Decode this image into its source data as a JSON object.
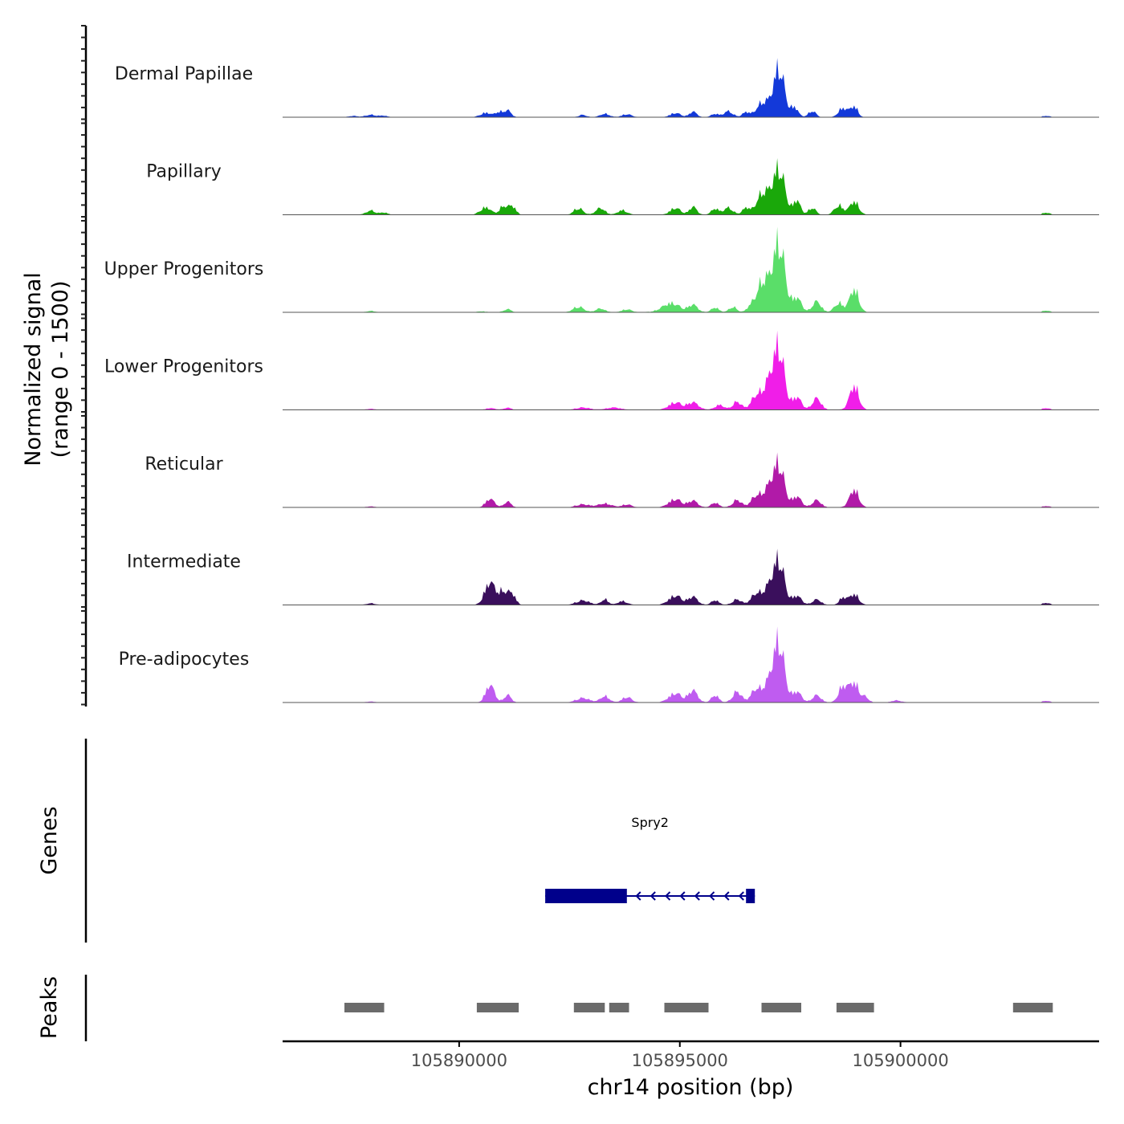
{
  "chart_data": {
    "type": "area",
    "title": "",
    "ylabel_line1": "Normalized signal",
    "ylabel_line2": "(range 0 - 1500)",
    "ylim": [
      0,
      1500
    ],
    "xlabel": "chr14 position (bp)",
    "xlim": [
      105886000,
      105904500
    ],
    "xticks": [
      105890000,
      105895000,
      105900000
    ],
    "xtick_labels": [
      "105890000",
      "105895000",
      "105900000"
    ],
    "peak_shape": [
      [
        105887400,
        105888300,
        1.0
      ],
      [
        105890600,
        105891200,
        1.0
      ],
      [
        105892600,
        105894300,
        0.8
      ],
      [
        105894800,
        105896600,
        0.85
      ],
      [
        105896700,
        105897500,
        1.0
      ],
      [
        105897500,
        105897900,
        0.9
      ],
      [
        105898500,
        105899000,
        1.0
      ],
      [
        105900000,
        105900300,
        1.0
      ],
      [
        105903200,
        105903400,
        1.0
      ]
    ],
    "series": [
      {
        "name": "Dermal Papillae",
        "color": "#1339d9",
        "peaks": [
          {
            "x": 105887600,
            "w": 80,
            "y": 30
          },
          {
            "x": 105888000,
            "w": 120,
            "y": 60
          },
          {
            "x": 105888300,
            "w": 80,
            "y": 40
          },
          {
            "x": 105890600,
            "w": 120,
            "y": 120
          },
          {
            "x": 105890900,
            "w": 80,
            "y": 140
          },
          {
            "x": 105891100,
            "w": 80,
            "y": 180
          },
          {
            "x": 105892800,
            "w": 80,
            "y": 60
          },
          {
            "x": 105893300,
            "w": 100,
            "y": 90
          },
          {
            "x": 105893800,
            "w": 100,
            "y": 80
          },
          {
            "x": 105894900,
            "w": 120,
            "y": 110
          },
          {
            "x": 105895300,
            "w": 80,
            "y": 150
          },
          {
            "x": 105895800,
            "w": 80,
            "y": 90
          },
          {
            "x": 105896100,
            "w": 100,
            "y": 160
          },
          {
            "x": 105896500,
            "w": 80,
            "y": 130
          },
          {
            "x": 105896900,
            "w": 150,
            "y": 420
          },
          {
            "x": 105897250,
            "w": 120,
            "y": 1350
          },
          {
            "x": 105897600,
            "w": 80,
            "y": 270
          },
          {
            "x": 105898000,
            "w": 80,
            "y": 180
          },
          {
            "x": 105898700,
            "w": 100,
            "y": 250
          },
          {
            "x": 105898950,
            "w": 80,
            "y": 300
          },
          {
            "x": 105903300,
            "w": 80,
            "y": 30
          }
        ]
      },
      {
        "name": "Papillary",
        "color": "#1aa80a",
        "peaks": [
          {
            "x": 105888000,
            "w": 100,
            "y": 110
          },
          {
            "x": 105888300,
            "w": 80,
            "y": 60
          },
          {
            "x": 105890600,
            "w": 120,
            "y": 200
          },
          {
            "x": 105891000,
            "w": 80,
            "y": 230
          },
          {
            "x": 105891200,
            "w": 80,
            "y": 250
          },
          {
            "x": 105892700,
            "w": 100,
            "y": 180
          },
          {
            "x": 105893200,
            "w": 100,
            "y": 180
          },
          {
            "x": 105893700,
            "w": 100,
            "y": 120
          },
          {
            "x": 105894900,
            "w": 120,
            "y": 180
          },
          {
            "x": 105895300,
            "w": 80,
            "y": 220
          },
          {
            "x": 105895800,
            "w": 80,
            "y": 170
          },
          {
            "x": 105896100,
            "w": 100,
            "y": 190
          },
          {
            "x": 105896500,
            "w": 80,
            "y": 180
          },
          {
            "x": 105896900,
            "w": 150,
            "y": 620
          },
          {
            "x": 105897250,
            "w": 130,
            "y": 1250
          },
          {
            "x": 105897650,
            "w": 80,
            "y": 400
          },
          {
            "x": 105898000,
            "w": 80,
            "y": 200
          },
          {
            "x": 105898600,
            "w": 100,
            "y": 250
          },
          {
            "x": 105898950,
            "w": 100,
            "y": 370
          },
          {
            "x": 105903300,
            "w": 80,
            "y": 50
          }
        ]
      },
      {
        "name": "Upper Progenitors",
        "color": "#5ade69",
        "peaks": [
          {
            "x": 105888000,
            "w": 80,
            "y": 30
          },
          {
            "x": 105890500,
            "w": 80,
            "y": 30
          },
          {
            "x": 105891100,
            "w": 80,
            "y": 80
          },
          {
            "x": 105892700,
            "w": 120,
            "y": 150
          },
          {
            "x": 105893200,
            "w": 100,
            "y": 100
          },
          {
            "x": 105893800,
            "w": 100,
            "y": 80
          },
          {
            "x": 105894800,
            "w": 200,
            "y": 250
          },
          {
            "x": 105895300,
            "w": 100,
            "y": 200
          },
          {
            "x": 105895800,
            "w": 80,
            "y": 130
          },
          {
            "x": 105896200,
            "w": 80,
            "y": 150
          },
          {
            "x": 105896600,
            "w": 80,
            "y": 120
          },
          {
            "x": 105896900,
            "w": 150,
            "y": 880
          },
          {
            "x": 105897250,
            "w": 130,
            "y": 1900
          },
          {
            "x": 105897650,
            "w": 100,
            "y": 400
          },
          {
            "x": 105898100,
            "w": 100,
            "y": 300
          },
          {
            "x": 105898600,
            "w": 100,
            "y": 250
          },
          {
            "x": 105898950,
            "w": 100,
            "y": 650
          },
          {
            "x": 105903300,
            "w": 80,
            "y": 40
          }
        ]
      },
      {
        "name": "Lower Progenitors",
        "color": "#f01ee8",
        "peaks": [
          {
            "x": 105888000,
            "w": 80,
            "y": 20
          },
          {
            "x": 105890700,
            "w": 100,
            "y": 40
          },
          {
            "x": 105891100,
            "w": 80,
            "y": 50
          },
          {
            "x": 105892800,
            "w": 150,
            "y": 60
          },
          {
            "x": 105893500,
            "w": 150,
            "y": 60
          },
          {
            "x": 105894900,
            "w": 150,
            "y": 200
          },
          {
            "x": 105895300,
            "w": 120,
            "y": 200
          },
          {
            "x": 105895900,
            "w": 100,
            "y": 130
          },
          {
            "x": 105896300,
            "w": 100,
            "y": 220
          },
          {
            "x": 105896700,
            "w": 100,
            "y": 300
          },
          {
            "x": 105897000,
            "w": 150,
            "y": 700
          },
          {
            "x": 105897250,
            "w": 120,
            "y": 1600
          },
          {
            "x": 105897650,
            "w": 100,
            "y": 350
          },
          {
            "x": 105898100,
            "w": 100,
            "y": 320
          },
          {
            "x": 105898950,
            "w": 100,
            "y": 680
          },
          {
            "x": 105903300,
            "w": 80,
            "y": 40
          }
        ]
      },
      {
        "name": "Reticular",
        "color": "#b11aa8",
        "peaks": [
          {
            "x": 105888000,
            "w": 80,
            "y": 20
          },
          {
            "x": 105890700,
            "w": 100,
            "y": 230
          },
          {
            "x": 105891100,
            "w": 80,
            "y": 150
          },
          {
            "x": 105892800,
            "w": 150,
            "y": 80
          },
          {
            "x": 105893300,
            "w": 150,
            "y": 100
          },
          {
            "x": 105893800,
            "w": 100,
            "y": 80
          },
          {
            "x": 105894900,
            "w": 150,
            "y": 220
          },
          {
            "x": 105895300,
            "w": 100,
            "y": 180
          },
          {
            "x": 105895800,
            "w": 80,
            "y": 130
          },
          {
            "x": 105896300,
            "w": 100,
            "y": 200
          },
          {
            "x": 105896700,
            "w": 100,
            "y": 250
          },
          {
            "x": 105897000,
            "w": 150,
            "y": 500
          },
          {
            "x": 105897250,
            "w": 120,
            "y": 1100
          },
          {
            "x": 105897650,
            "w": 100,
            "y": 300
          },
          {
            "x": 105898100,
            "w": 100,
            "y": 200
          },
          {
            "x": 105898950,
            "w": 100,
            "y": 500
          },
          {
            "x": 105903300,
            "w": 80,
            "y": 30
          }
        ]
      },
      {
        "name": "Intermediate",
        "color": "#3a0f5c",
        "peaks": [
          {
            "x": 105888000,
            "w": 80,
            "y": 40
          },
          {
            "x": 105890700,
            "w": 120,
            "y": 620
          },
          {
            "x": 105891000,
            "w": 100,
            "y": 350
          },
          {
            "x": 105891200,
            "w": 80,
            "y": 300
          },
          {
            "x": 105892800,
            "w": 150,
            "y": 120
          },
          {
            "x": 105893300,
            "w": 80,
            "y": 150
          },
          {
            "x": 105893700,
            "w": 100,
            "y": 100
          },
          {
            "x": 105894900,
            "w": 150,
            "y": 250
          },
          {
            "x": 105895300,
            "w": 100,
            "y": 220
          },
          {
            "x": 105895800,
            "w": 80,
            "y": 130
          },
          {
            "x": 105896300,
            "w": 100,
            "y": 150
          },
          {
            "x": 105896700,
            "w": 100,
            "y": 250
          },
          {
            "x": 105897000,
            "w": 150,
            "y": 450
          },
          {
            "x": 105897250,
            "w": 120,
            "y": 1150
          },
          {
            "x": 105897650,
            "w": 100,
            "y": 250
          },
          {
            "x": 105898100,
            "w": 100,
            "y": 150
          },
          {
            "x": 105898700,
            "w": 80,
            "y": 200
          },
          {
            "x": 105898950,
            "w": 100,
            "y": 300
          },
          {
            "x": 105903300,
            "w": 80,
            "y": 50
          }
        ]
      },
      {
        "name": "Pre-adipocytes",
        "color": "#bf5cf0",
        "peaks": [
          {
            "x": 105888000,
            "w": 80,
            "y": 20
          },
          {
            "x": 105890700,
            "w": 100,
            "y": 480
          },
          {
            "x": 105891100,
            "w": 80,
            "y": 200
          },
          {
            "x": 105892800,
            "w": 150,
            "y": 120
          },
          {
            "x": 105893300,
            "w": 100,
            "y": 170
          },
          {
            "x": 105893800,
            "w": 100,
            "y": 150
          },
          {
            "x": 105894900,
            "w": 150,
            "y": 250
          },
          {
            "x": 105895300,
            "w": 100,
            "y": 330
          },
          {
            "x": 105895800,
            "w": 80,
            "y": 200
          },
          {
            "x": 105896300,
            "w": 100,
            "y": 300
          },
          {
            "x": 105896700,
            "w": 100,
            "y": 300
          },
          {
            "x": 105897000,
            "w": 150,
            "y": 500
          },
          {
            "x": 105897250,
            "w": 120,
            "y": 1600
          },
          {
            "x": 105897650,
            "w": 100,
            "y": 300
          },
          {
            "x": 105898100,
            "w": 100,
            "y": 200
          },
          {
            "x": 105898700,
            "w": 100,
            "y": 450
          },
          {
            "x": 105898950,
            "w": 100,
            "y": 550
          },
          {
            "x": 105899200,
            "w": 80,
            "y": 150
          },
          {
            "x": 105899900,
            "w": 100,
            "y": 60
          },
          {
            "x": 105903300,
            "w": 80,
            "y": 40
          }
        ]
      }
    ],
    "genes": {
      "label": "Genes",
      "items": [
        {
          "name": "Spry2",
          "start": 105891950,
          "end": 105896700,
          "strand": "-",
          "color": "#00008b",
          "blocks": [
            [
              105891950,
              105893800
            ],
            [
              105896500,
              105896700
            ]
          ]
        }
      ]
    },
    "peaks_track": {
      "label": "Peaks",
      "color": "#6b6b6b",
      "intervals": [
        [
          105887400,
          105888300
        ],
        [
          105890400,
          105891350
        ],
        [
          105892600,
          105893300
        ],
        [
          105893400,
          105893850
        ],
        [
          105894650,
          105895650
        ],
        [
          105896850,
          105897750
        ],
        [
          105898550,
          105899400
        ],
        [
          105902550,
          105903450
        ]
      ]
    }
  }
}
